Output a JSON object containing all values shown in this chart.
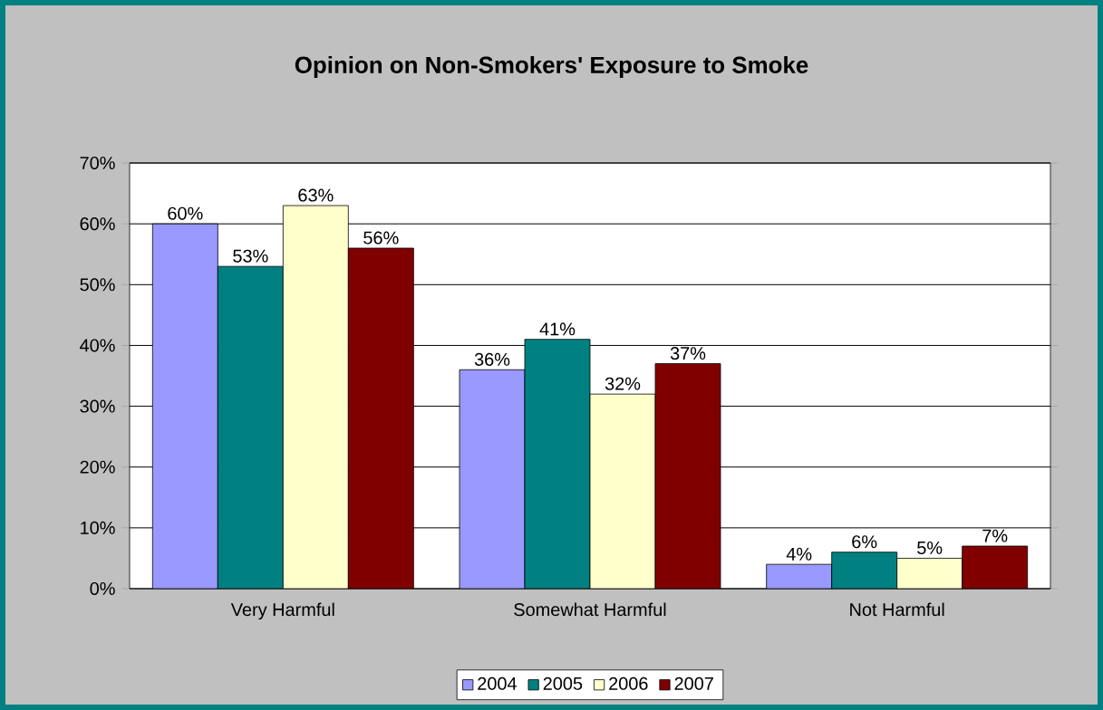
{
  "chart_data": {
    "type": "bar",
    "title": "Opinion on Non-Smokers' Exposure to Smoke",
    "categories": [
      "Very Harmful",
      "Somewhat Harmful",
      "Not Harmful"
    ],
    "series": [
      {
        "name": "2004",
        "color": "#9999ff",
        "values": [
          60,
          36,
          4
        ],
        "value_labels": [
          "60%",
          "36%",
          "4%"
        ]
      },
      {
        "name": "2005",
        "color": "#008080",
        "values": [
          53,
          41,
          6
        ],
        "value_labels": [
          "53%",
          "41%",
          "6%"
        ]
      },
      {
        "name": "2006",
        "color": "#ffffcc",
        "values": [
          63,
          32,
          5
        ],
        "value_labels": [
          "63%",
          "32%",
          "5%"
        ]
      },
      {
        "name": "2007",
        "color": "#800000",
        "values": [
          56,
          37,
          7
        ],
        "value_labels": [
          "56%",
          "37%",
          "7%"
        ]
      }
    ],
    "ylim": [
      0,
      70
    ],
    "yticks": [
      {
        "value": 0,
        "label": "0%"
      },
      {
        "value": 10,
        "label": "10%"
      },
      {
        "value": 20,
        "label": "20%"
      },
      {
        "value": 30,
        "label": "30%"
      },
      {
        "value": 40,
        "label": "40%"
      },
      {
        "value": 50,
        "label": "50%"
      },
      {
        "value": 60,
        "label": "60%"
      },
      {
        "value": 70,
        "label": "70%"
      }
    ],
    "grid": "y",
    "legend": "bottom"
  }
}
